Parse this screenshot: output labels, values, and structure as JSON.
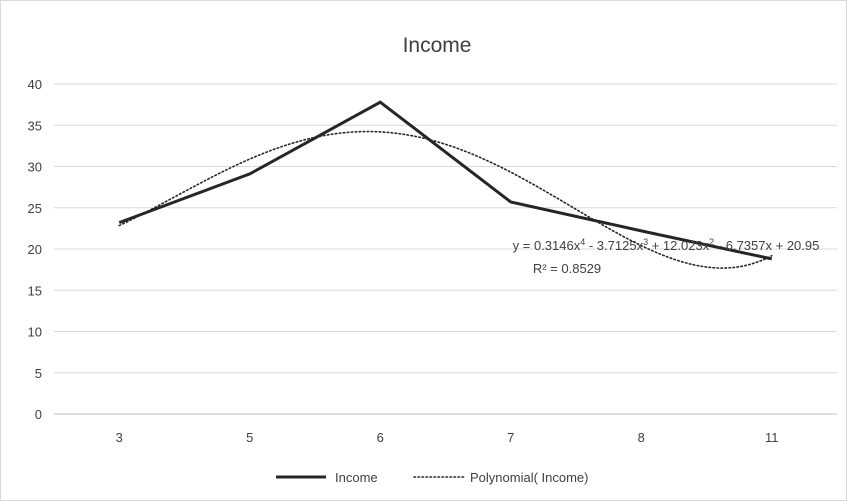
{
  "chart_data": {
    "type": "line",
    "title": "Income",
    "categories": [
      "3",
      "5",
      "6",
      "7",
      "8",
      "11"
    ],
    "ylim": [
      0,
      40
    ],
    "yticks": [
      0,
      5,
      10,
      15,
      20,
      25,
      30,
      35,
      40
    ],
    "grid": true,
    "legend_position": "bottom",
    "series": [
      {
        "name": "Income",
        "values": [
          23.2,
          29.1,
          37.8,
          25.7,
          22.2,
          18.8
        ],
        "color": "#262626",
        "style": "solid"
      }
    ],
    "trendline": {
      "name": "Polynomial( Income)",
      "type": "polynomial",
      "order": 4,
      "coefficients": [
        0.3146,
        -3.7125,
        12.023,
        -6.7357,
        20.95
      ],
      "equation_prefix": "y = ",
      "equation_terms": [
        "0.3146x",
        "4",
        " - 3.7125x",
        "3",
        " + 12.023x",
        "2",
        " - 6.7357x + 20.95"
      ],
      "r_squared": "R² = 0.8529",
      "color": "#262626",
      "style": "dotted"
    }
  }
}
